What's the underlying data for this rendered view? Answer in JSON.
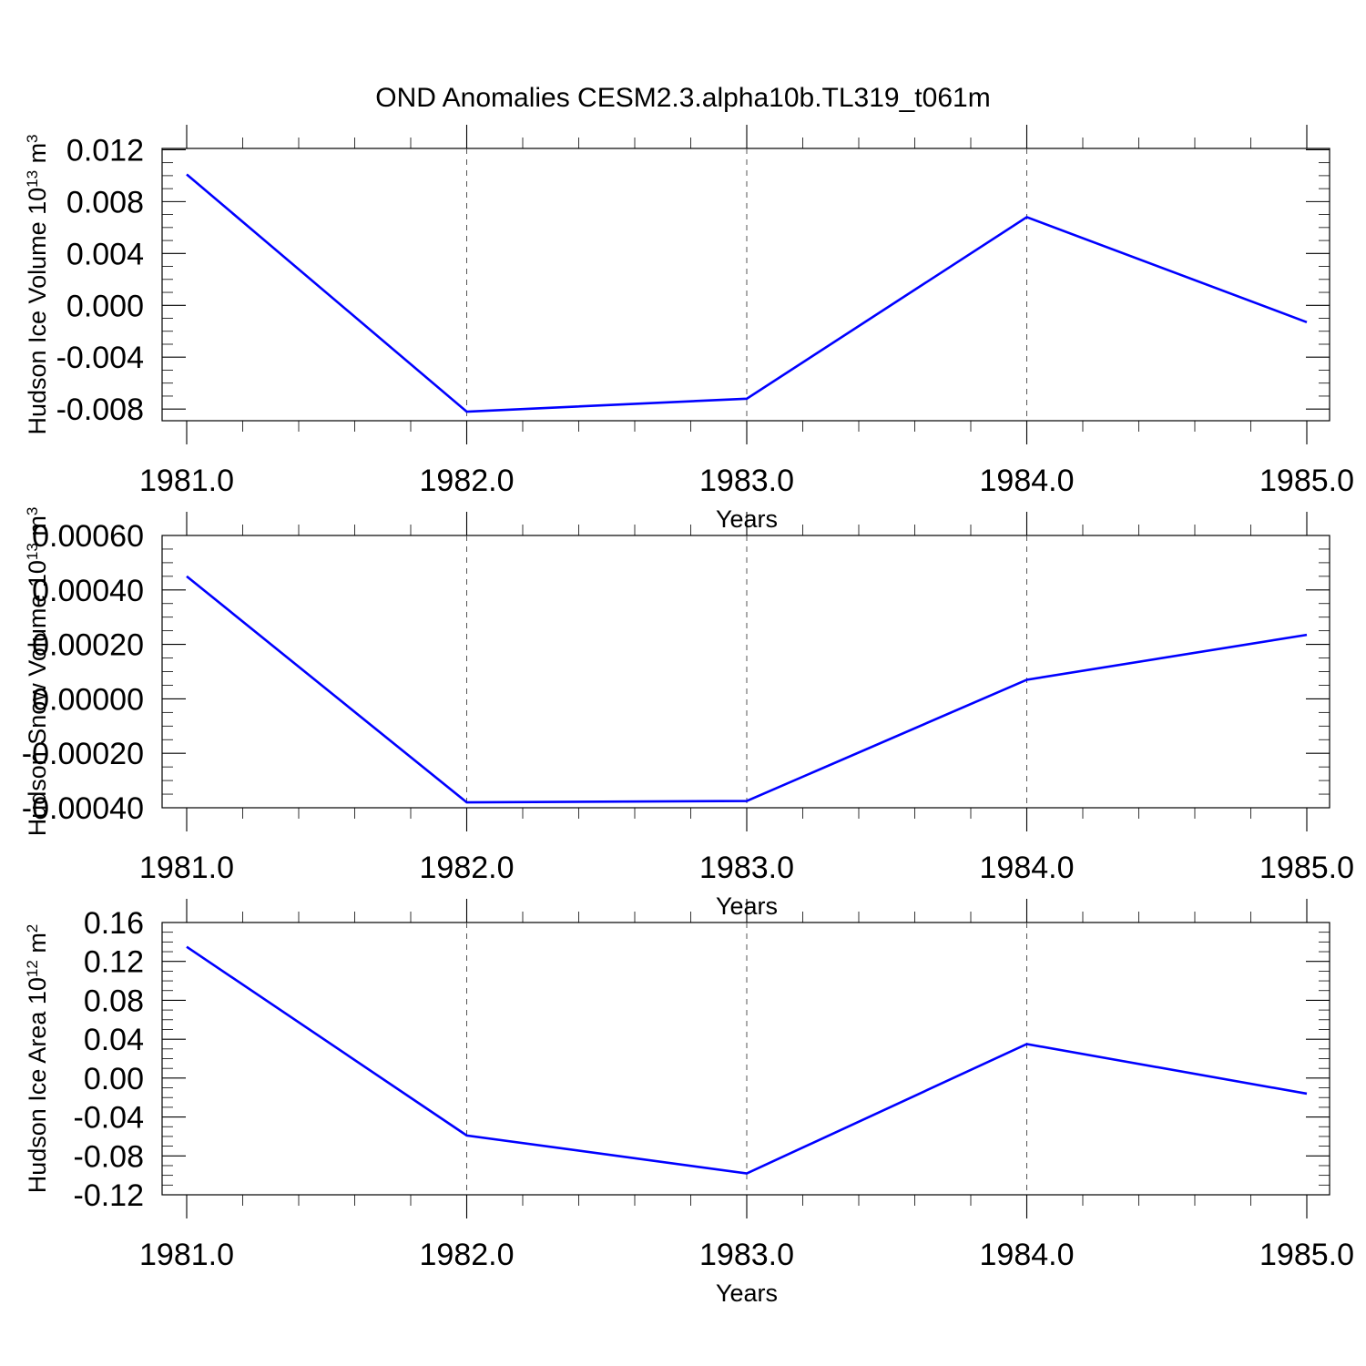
{
  "title": "OND Anomalies CESM2.3.alpha10b.TL319_t061m",
  "line_color": "#0000ff",
  "chart_data": [
    {
      "type": "line",
      "ylabel": "Hudson Ice Volume 10",
      "ylabel_exp": "13",
      "ylabel_unit": " m",
      "ylabel_unit_exp": "3",
      "xlabel": "Years",
      "x": [
        1981,
        1982,
        1983,
        1984,
        1985
      ],
      "x_ticks": [
        "1981.0",
        "1982.0",
        "1983.0",
        "1984.0",
        "1985.0"
      ],
      "y": [
        0.0101,
        -0.0082,
        -0.0072,
        0.0068,
        -0.0013
      ],
      "ylim": [
        -0.0089,
        0.0121
      ],
      "y_ticks": [
        0.012,
        0.008,
        0.004,
        0.0,
        -0.004,
        -0.008
      ],
      "y_tick_labels": [
        "0.012",
        "0.008",
        "0.004",
        "0.000",
        "-0.004",
        "-0.008"
      ],
      "y_minor_step": 0.001,
      "grid": "vertical dashed at major x ticks"
    },
    {
      "type": "line",
      "ylabel": "Hudson Snow Volume 10",
      "ylabel_exp": "13",
      "ylabel_unit": " m",
      "ylabel_unit_exp": "3",
      "xlabel": "Years",
      "x": [
        1981,
        1982,
        1983,
        1984,
        1985
      ],
      "x_ticks": [
        "1981.0",
        "1982.0",
        "1983.0",
        "1984.0",
        "1985.0"
      ],
      "y": [
        0.00045,
        -0.00038,
        -0.000375,
        7e-05,
        0.000235
      ],
      "ylim": [
        -0.0004,
        0.0006
      ],
      "y_ticks": [
        0.0006,
        0.0004,
        0.0002,
        0.0,
        -0.0002,
        -0.0004
      ],
      "y_tick_labels": [
        "0.00060",
        "0.00040",
        "0.00020",
        "0.00000",
        "-0.00020",
        "-0.00040"
      ],
      "y_minor_step": 5e-05,
      "grid": "vertical dashed at major x ticks"
    },
    {
      "type": "line",
      "ylabel": "Hudson Ice Area 10",
      "ylabel_exp": "12",
      "ylabel_unit": " m",
      "ylabel_unit_exp": "2",
      "xlabel": "Years",
      "x": [
        1981,
        1982,
        1983,
        1984,
        1985
      ],
      "x_ticks": [
        "1981.0",
        "1982.0",
        "1983.0",
        "1984.0",
        "1985.0"
      ],
      "y": [
        0.135,
        -0.059,
        -0.098,
        0.035,
        -0.016
      ],
      "ylim": [
        -0.12,
        0.16
      ],
      "y_ticks": [
        0.16,
        0.12,
        0.08,
        0.04,
        0.0,
        -0.04,
        -0.08,
        -0.12
      ],
      "y_tick_labels": [
        "0.16",
        "0.12",
        "0.08",
        "0.04",
        "0.00",
        "-0.04",
        "-0.08",
        "-0.12"
      ],
      "y_minor_step": 0.01,
      "grid": "vertical dashed at major x ticks"
    }
  ]
}
